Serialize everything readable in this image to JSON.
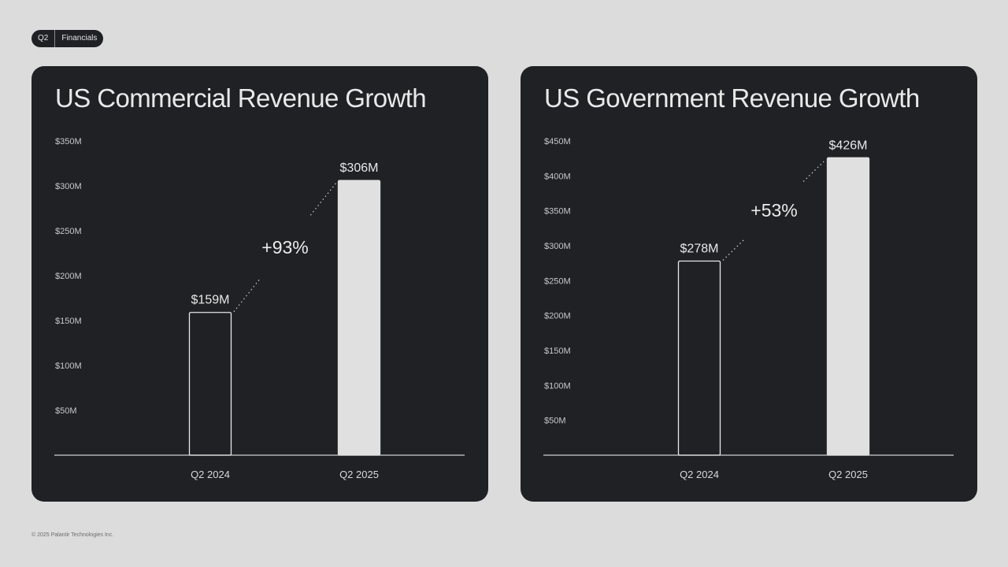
{
  "header": {
    "quarter": "Q2",
    "section": "Financials"
  },
  "footer": {
    "copyright": "© 2025 Palantir Technologies Inc."
  },
  "colors": {
    "background": "#dcdcdc",
    "card": "#1f2125",
    "bar_fill": "#e0e0e0",
    "text": "#e9e9e9",
    "axis": "#cfcfcf"
  },
  "chart_data": [
    {
      "type": "bar",
      "title": "US Commercial Revenue Growth",
      "categories": [
        "Q2 2024",
        "Q2 2025"
      ],
      "values": [
        159,
        306
      ],
      "value_labels": [
        "$159M",
        "$306M"
      ],
      "growth_label": "+93%",
      "yticks": [
        50,
        100,
        150,
        200,
        250,
        300,
        350
      ],
      "ytick_labels": [
        "$50M",
        "$100M",
        "$150M",
        "$200M",
        "$250M",
        "$300M",
        "$350M"
      ],
      "ylim": [
        0,
        350
      ],
      "bar_styles": [
        "outline",
        "filled"
      ]
    },
    {
      "type": "bar",
      "title": "US Government Revenue Growth",
      "categories": [
        "Q2 2024",
        "Q2 2025"
      ],
      "values": [
        278,
        426
      ],
      "value_labels": [
        "$278M",
        "$426M"
      ],
      "growth_label": "+53%",
      "yticks": [
        50,
        100,
        150,
        200,
        250,
        300,
        350,
        400,
        450
      ],
      "ytick_labels": [
        "$50M",
        "$100M",
        "$150M",
        "$200M",
        "$250M",
        "$300M",
        "$350M",
        "$400M",
        "$450M"
      ],
      "ylim": [
        0,
        450
      ],
      "bar_styles": [
        "outline",
        "filled"
      ]
    }
  ]
}
